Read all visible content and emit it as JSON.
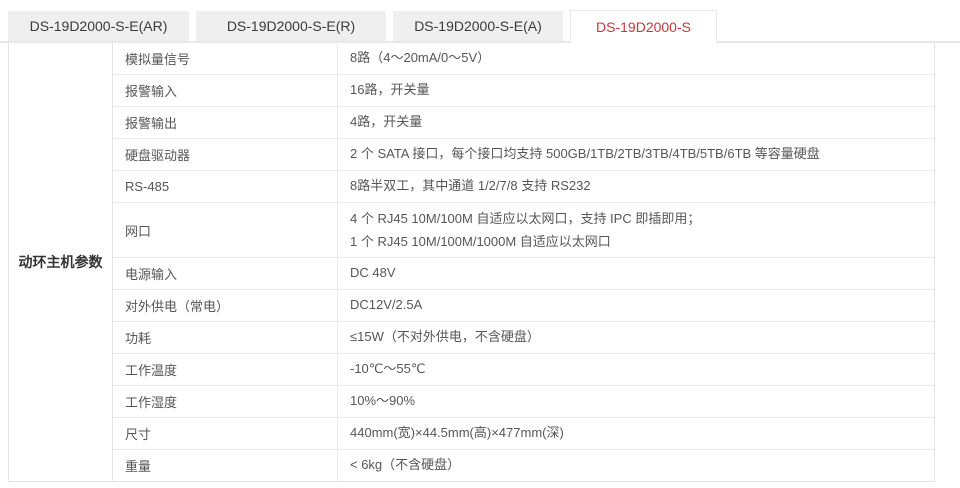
{
  "tabs": [
    {
      "label": "DS-19D2000-S-E(AR)",
      "active": false
    },
    {
      "label": "DS-19D2000-S-E(R)",
      "active": false
    },
    {
      "label": "DS-19D2000-S-E(A)",
      "active": false
    },
    {
      "label": "DS-19D2000-S",
      "active": true
    }
  ],
  "table": {
    "group_header": "动环主机参数",
    "rows": [
      {
        "param": "模拟量信号",
        "value": "8路（4～20mA/0～5V）"
      },
      {
        "param": "报警输入",
        "value": "16路，开关量"
      },
      {
        "param": "报警输出",
        "value": "4路，开关量"
      },
      {
        "param": "硬盘驱动器",
        "value": "2 个 SATA 接口，每个接口均支持 500GB/1TB/2TB/3TB/4TB/5TB/6TB 等容量硬盘"
      },
      {
        "param": "RS-485",
        "value": "8路半双工，其中通道 1/2/7/8 支持 RS232"
      },
      {
        "param": "网口",
        "value": "4 个 RJ45 10M/100M 自适应以太网口，支持 IPC 即插即用；",
        "value2": "1 个 RJ45 10M/100M/1000M 自适应以太网口"
      },
      {
        "param": "电源输入",
        "value": "DC 48V"
      },
      {
        "param": "对外供电（常电）",
        "value": "DC12V/2.5A"
      },
      {
        "param": "功耗",
        "value": "≤15W（不对外供电，不含硬盘）"
      },
      {
        "param": "工作温度",
        "value": "-10℃～55℃"
      },
      {
        "param": "工作湿度",
        "value": "10%～90%"
      },
      {
        "param": "尺寸",
        "value": "440mm(宽)×44.5mm(高)×477mm(深)"
      },
      {
        "param": "重量",
        "value": "< 6kg（不含硬盘）"
      }
    ]
  },
  "colors": {
    "accent_red": "#c4393b",
    "tab_bg": "#efefef",
    "tab_text": "#3a3a3a",
    "border": "#e3e3e3",
    "cell_text": "#565656"
  }
}
